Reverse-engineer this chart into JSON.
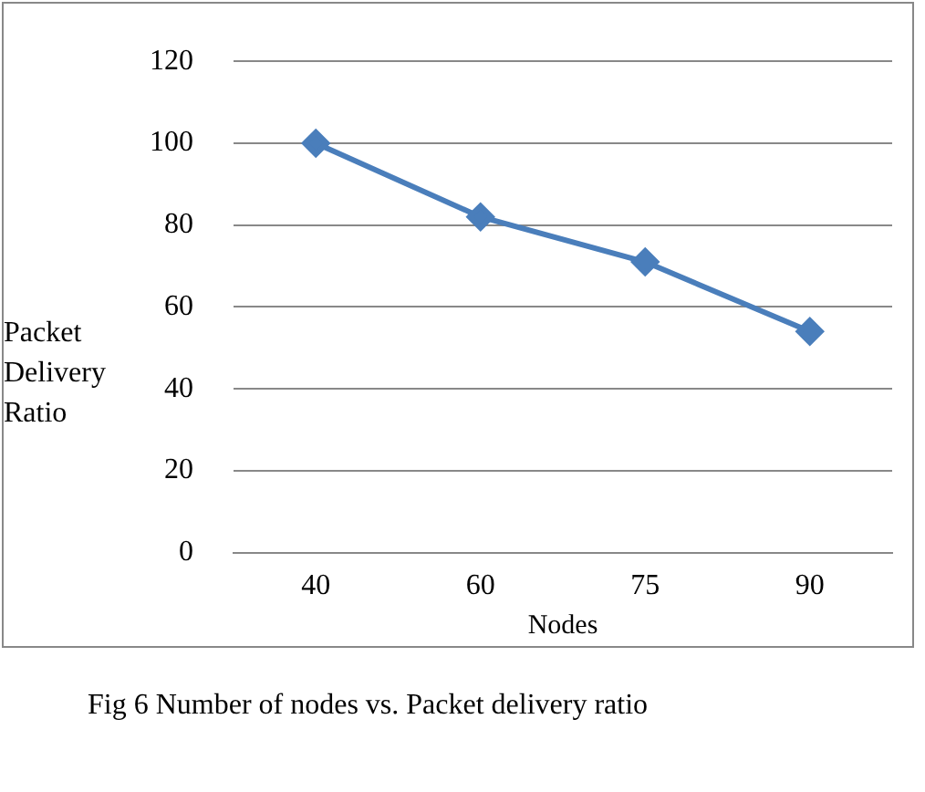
{
  "chart_data": {
    "type": "line",
    "categories": [
      "40",
      "60",
      "75",
      "90"
    ],
    "series": [
      {
        "color": "#4a7ebb",
        "values": [
          100,
          82,
          71,
          54
        ]
      }
    ],
    "xlabel": "Nodes",
    "ylabel": "Packet Delivery Ratio",
    "ylim": [
      0,
      120
    ],
    "yticks": [
      0,
      20,
      40,
      60,
      80,
      100,
      120
    ],
    "grid": "y",
    "legend": false,
    "marker": "diamond",
    "line_style": "solid",
    "annotations": [
      "Fig 6 Number of nodes vs. Packet delivery ratio"
    ]
  }
}
